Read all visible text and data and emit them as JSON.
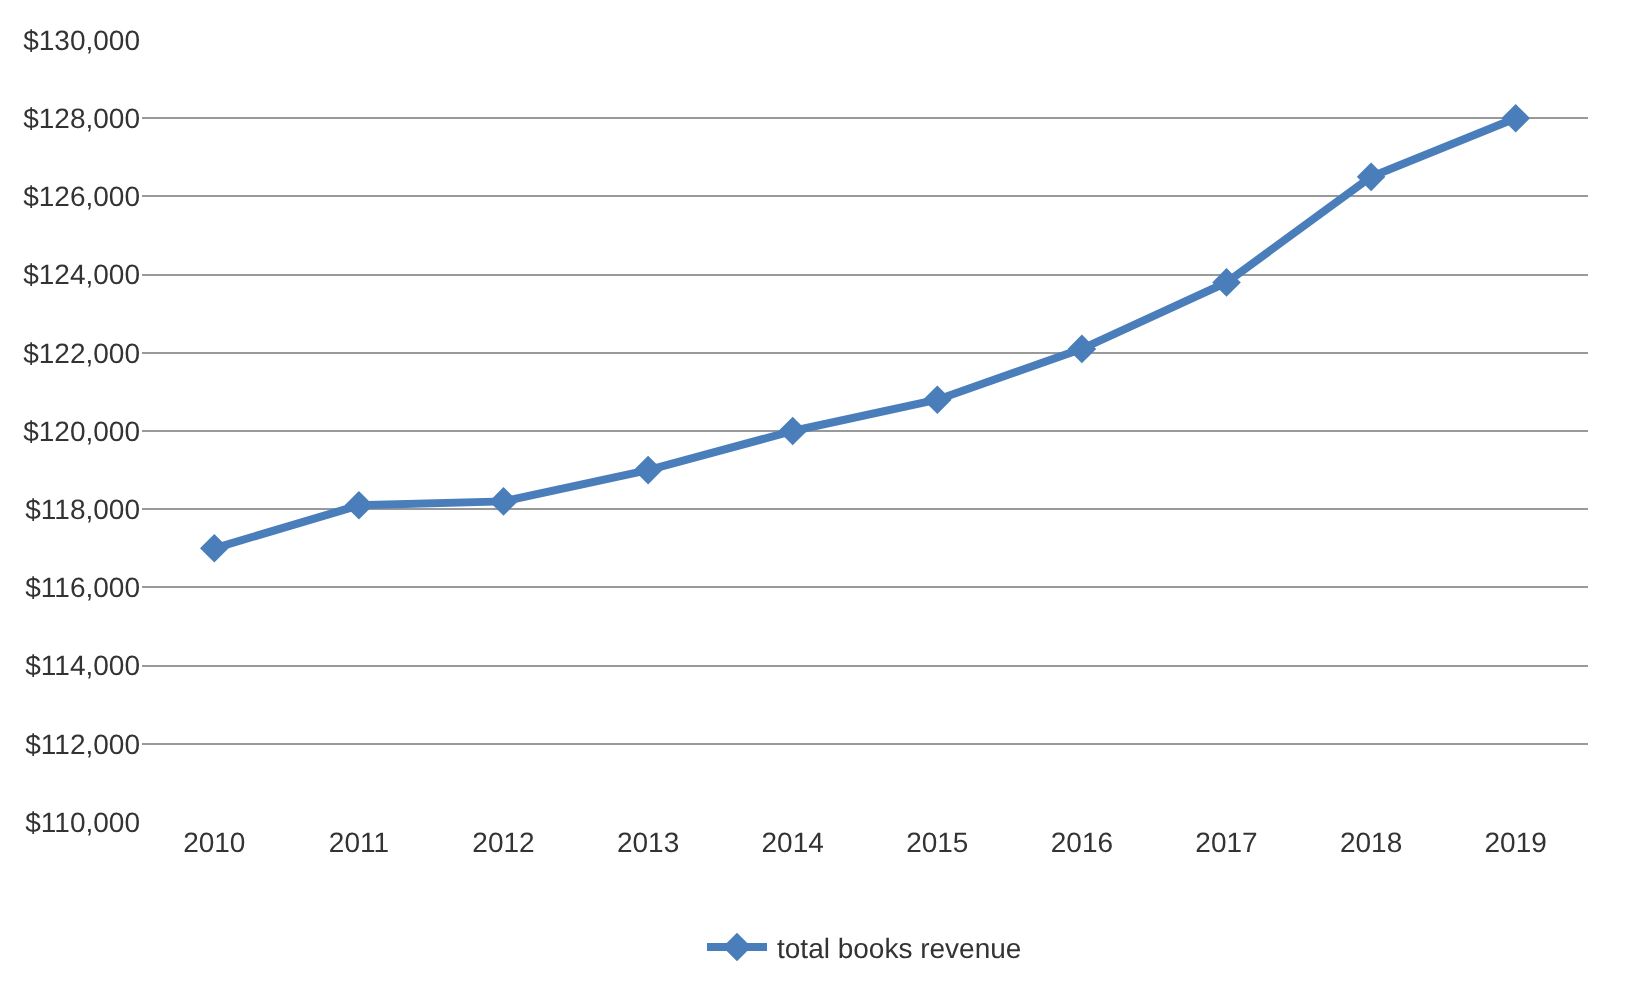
{
  "chart_data": {
    "type": "line",
    "categories": [
      "2010",
      "2011",
      "2012",
      "2013",
      "2014",
      "2015",
      "2016",
      "2017",
      "2018",
      "2019"
    ],
    "series": [
      {
        "name": "total books revenue",
        "color": "#4a7ebb",
        "values": [
          117000,
          118100,
          118200,
          119000,
          120000,
          120800,
          122100,
          123800,
          126500,
          128000
        ]
      }
    ],
    "ylim": [
      110000,
      130000
    ],
    "yticks": [
      {
        "value": 110000,
        "label": "$110,000"
      },
      {
        "value": 112000,
        "label": "$112,000"
      },
      {
        "value": 114000,
        "label": "$114,000"
      },
      {
        "value": 116000,
        "label": "$116,000"
      },
      {
        "value": 118000,
        "label": "$118,000"
      },
      {
        "value": 120000,
        "label": "$120,000"
      },
      {
        "value": 122000,
        "label": "$122,000"
      },
      {
        "value": 124000,
        "label": "$124,000"
      },
      {
        "value": 126000,
        "label": "$126,000"
      },
      {
        "value": 128000,
        "label": "$128,000"
      },
      {
        "value": 130000,
        "label": "$130,000"
      }
    ],
    "grid": "y",
    "legend": "bottom",
    "marker": "diamond",
    "line_style": "solid"
  }
}
